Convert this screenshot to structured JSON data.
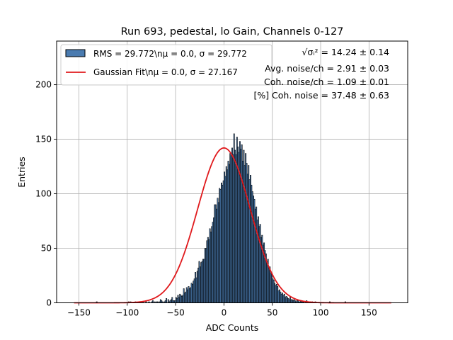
{
  "chart_data": {
    "type": "bar",
    "title": "Run 693, pedestal, lo Gain, Channels 0-127",
    "xlabel": "ADC Counts",
    "ylabel": "Entries",
    "xlim": [
      -173,
      190
    ],
    "ylim": [
      0,
      240
    ],
    "x_ticks": [
      -150,
      -100,
      -50,
      0,
      50,
      100,
      150
    ],
    "y_ticks": [
      0,
      50,
      100,
      150,
      200
    ],
    "grid": true,
    "legend_position": "top-left",
    "series": [
      {
        "name": "RMS = 29.772\\nμ = 0.0, σ = 29.772",
        "kind": "histogram",
        "color": "#4a7bb0",
        "edge_color": "#000000",
        "x_start": -155,
        "bin_width": 1,
        "counts": [
          0,
          0,
          0,
          0,
          0,
          0,
          0,
          0,
          0,
          0,
          0,
          0,
          0,
          0,
          0,
          0,
          0,
          0,
          0,
          0,
          0,
          0,
          0,
          1,
          0,
          0,
          0,
          0,
          0,
          0,
          0,
          0,
          0,
          0,
          0,
          0,
          0,
          0,
          0,
          0,
          0,
          0,
          0,
          0,
          0,
          0,
          0,
          0,
          0,
          0,
          0,
          0,
          0,
          0,
          0,
          0,
          1,
          0,
          1,
          0,
          0,
          0,
          0,
          1,
          0,
          0,
          0,
          0,
          0,
          1,
          0,
          1,
          0,
          0,
          1,
          0,
          0,
          1,
          0,
          0,
          1,
          2,
          0,
          1,
          0,
          1,
          1,
          0,
          1,
          3,
          2,
          1,
          0,
          1,
          2,
          4,
          0,
          3,
          1,
          2,
          3,
          5,
          2,
          2,
          2,
          5,
          4,
          7,
          5,
          8,
          7,
          6,
          7,
          13,
          9,
          10,
          14,
          12,
          15,
          13,
          14,
          18,
          17,
          20,
          22,
          28,
          23,
          29,
          32,
          38,
          33,
          37,
          38,
          40,
          40,
          50,
          50,
          57,
          60,
          58,
          68,
          65,
          70,
          74,
          78,
          90,
          90,
          86,
          96,
          92,
          105,
          104,
          110,
          108,
          112,
          120,
          116,
          125,
          122,
          130,
          127,
          137,
          135,
          142,
          136,
          155,
          140,
          136,
          152,
          143,
          138,
          148,
          141,
          145,
          130,
          140,
          126,
          137,
          128,
          118,
          126,
          113,
          117,
          108,
          102,
          98,
          95,
          86,
          88,
          76,
          79,
          70,
          72,
          60,
          62,
          53,
          55,
          48,
          45,
          38,
          40,
          32,
          33,
          27,
          27,
          22,
          21,
          18,
          16,
          17,
          15,
          11,
          12,
          10,
          8,
          9,
          7,
          8,
          5,
          6,
          5,
          4,
          3,
          5,
          3,
          3,
          2,
          3,
          2,
          1,
          2,
          2,
          1,
          1,
          2,
          1,
          1,
          1,
          0,
          1,
          2,
          1,
          0,
          0,
          1,
          0,
          1,
          0,
          0,
          1,
          0,
          0,
          0,
          0,
          0,
          0,
          0,
          0,
          0,
          0,
          0,
          0,
          0,
          0,
          1,
          0,
          0,
          0,
          0,
          0,
          0,
          0,
          0,
          0,
          0,
          0,
          0,
          0,
          0,
          0,
          1,
          0,
          0,
          0,
          0,
          0,
          0,
          0,
          0,
          0,
          0,
          0,
          0,
          0,
          0,
          0,
          0,
          0,
          0,
          0,
          0,
          0,
          0,
          0,
          0,
          0,
          0,
          0,
          0,
          0,
          0,
          0,
          0,
          0,
          0,
          0,
          0,
          0,
          0,
          0,
          0,
          0,
          0,
          0,
          0,
          0,
          0,
          0,
          0,
          0,
          0,
          0,
          0,
          0,
          0,
          0,
          0,
          0,
          0,
          0,
          0,
          0,
          0,
          0,
          0,
          0,
          0,
          0,
          0
        ]
      },
      {
        "name": "Gaussian Fit\\nμ = 0.0, σ = 27.167",
        "kind": "gaussian",
        "color": "#e0191c",
        "mu": 0.0,
        "sigma": 27.167,
        "amplitude": 142,
        "x_range": [
          -155,
          173
        ]
      }
    ],
    "annotations": [
      {
        "label_math": "√σᵢ²",
        "text": " = 14.24 ± 0.14"
      },
      {
        "text": "Avg. noise/ch = 2.91 ± 0.03"
      },
      {
        "text": "Coh. noise/ch = 1.09 ± 0.01"
      },
      {
        "text": "[%] Coh. noise = 37.48 ± 0.63"
      }
    ]
  }
}
